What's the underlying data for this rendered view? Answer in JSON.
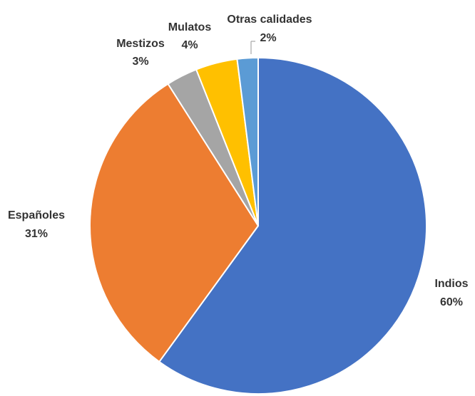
{
  "chart_data": {
    "type": "pie",
    "title": "",
    "start_angle_deg": 0,
    "direction": "clockwise",
    "legend": "none",
    "slices": [
      {
        "name": "Indios",
        "value": 60,
        "label": "60%",
        "color": "#4472c4"
      },
      {
        "name": "Españoles",
        "value": 31,
        "label": "31%",
        "color": "#ed7d31"
      },
      {
        "name": "Mestizos",
        "value": 3,
        "label": "3%",
        "color": "#a5a5a5"
      },
      {
        "name": "Mulatos",
        "value": 4,
        "label": "4%",
        "color": "#ffc000"
      },
      {
        "name": "Otras calidades",
        "value": 2,
        "label": "2%",
        "color": "#5b9bd5"
      }
    ]
  }
}
